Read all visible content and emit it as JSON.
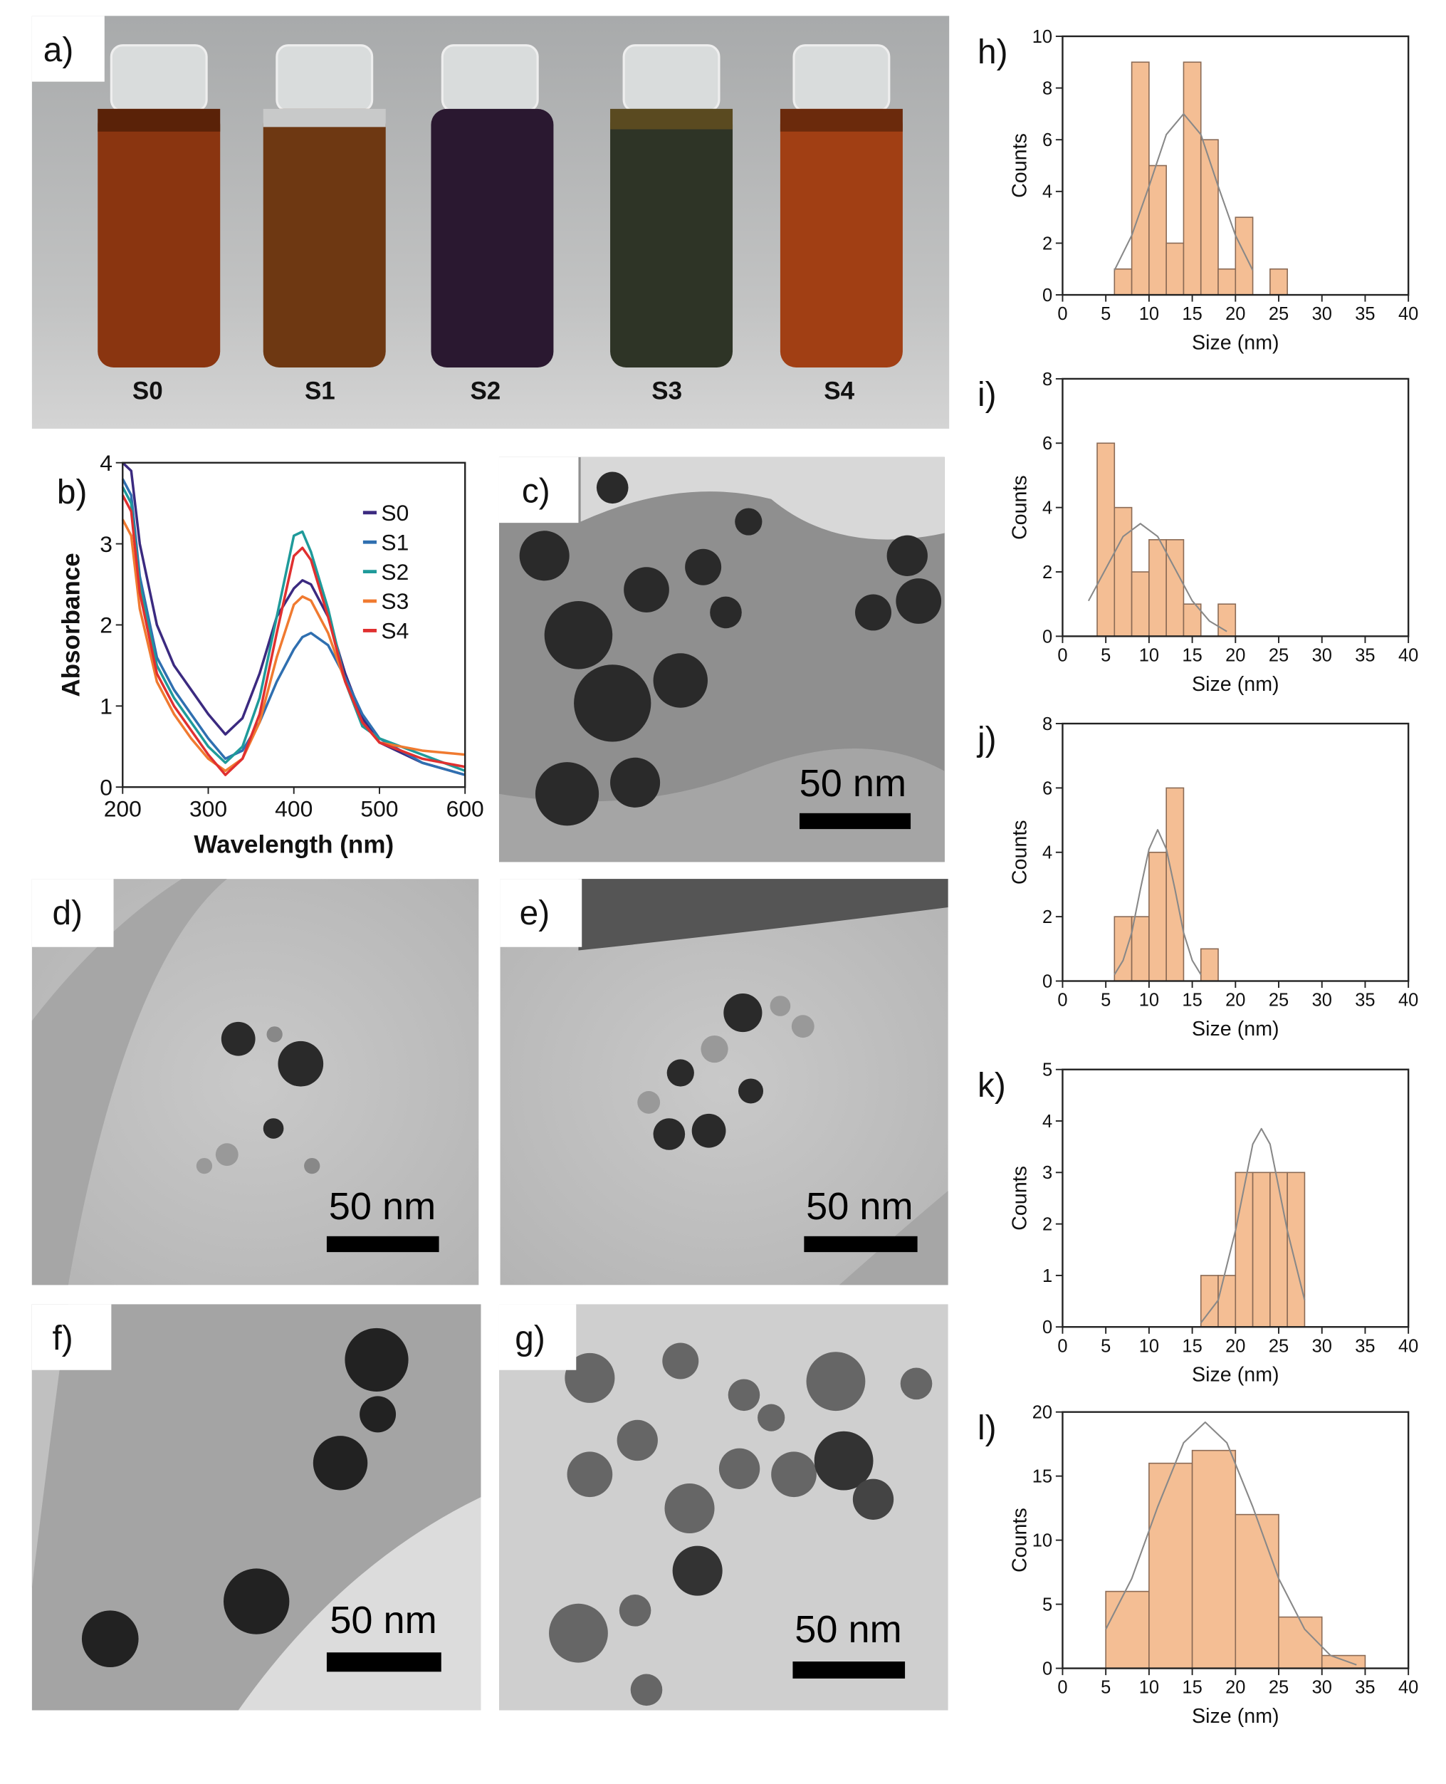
{
  "photo": {
    "label": "a)",
    "vial_labels": [
      "S0",
      "S1",
      "S2",
      "S3",
      "S4"
    ]
  },
  "tem_images": [
    {
      "label": "c)",
      "scale_bar": "50 nm"
    },
    {
      "label": "d)",
      "scale_bar": "50 nm"
    },
    {
      "label": "e)",
      "scale_bar": "50 nm"
    },
    {
      "label": "f)",
      "scale_bar": "50 nm"
    },
    {
      "label": "g)",
      "scale_bar": "50 nm"
    }
  ],
  "chart_data": [
    {
      "type": "line",
      "panel_label": "b)",
      "x_label": "Wavelength (nm)",
      "y_label": "Absorbance",
      "x": [
        200,
        210,
        220,
        240,
        260,
        280,
        300,
        320,
        340,
        360,
        380,
        400,
        410,
        420,
        440,
        460,
        480,
        500,
        550,
        600
      ],
      "series": [
        {
          "name": "S0",
          "color": "#3b2a80",
          "values": [
            4.0,
            3.9,
            3.0,
            2.0,
            1.5,
            1.2,
            0.9,
            0.65,
            0.85,
            1.4,
            2.1,
            2.45,
            2.55,
            2.5,
            2.1,
            1.4,
            0.85,
            0.55,
            0.3,
            0.15
          ]
        },
        {
          "name": "S1",
          "color": "#2f6fb0",
          "values": [
            3.8,
            3.6,
            2.6,
            1.6,
            1.2,
            0.9,
            0.6,
            0.35,
            0.45,
            0.8,
            1.3,
            1.7,
            1.85,
            1.9,
            1.75,
            1.35,
            0.9,
            0.6,
            0.3,
            0.15
          ]
        },
        {
          "name": "S2",
          "color": "#1f9a9a",
          "values": [
            3.7,
            3.5,
            2.5,
            1.5,
            1.1,
            0.8,
            0.5,
            0.3,
            0.5,
            1.1,
            2.1,
            3.1,
            3.15,
            2.9,
            2.2,
            1.3,
            0.75,
            0.6,
            0.4,
            0.2
          ]
        },
        {
          "name": "S3",
          "color": "#f07a30",
          "values": [
            3.3,
            3.1,
            2.2,
            1.3,
            0.9,
            0.6,
            0.35,
            0.2,
            0.35,
            0.8,
            1.6,
            2.25,
            2.35,
            2.3,
            1.9,
            1.3,
            0.8,
            0.55,
            0.45,
            0.4
          ]
        },
        {
          "name": "S4",
          "color": "#e03030",
          "values": [
            3.6,
            3.4,
            2.4,
            1.4,
            1.0,
            0.7,
            0.4,
            0.15,
            0.35,
            0.9,
            1.9,
            2.85,
            2.95,
            2.8,
            2.1,
            1.3,
            0.8,
            0.55,
            0.35,
            0.25
          ]
        }
      ],
      "xlim": [
        200,
        600
      ],
      "xticks": [
        200,
        300,
        400,
        500,
        600
      ],
      "ylim": [
        0,
        4
      ],
      "yticks": [
        0,
        1,
        2,
        3,
        4
      ],
      "legend": "upper right"
    },
    {
      "type": "histogram",
      "panel_label": "h)",
      "x_label": "Size (nm)",
      "y_label": "Counts",
      "bins": [
        6,
        8,
        10,
        12,
        14,
        16,
        18,
        20,
        22,
        24,
        26
      ],
      "values": [
        1,
        9,
        5,
        2,
        9,
        6,
        1,
        3,
        0,
        1
      ],
      "color": "#f4be94",
      "edge_color": "#8a6a55",
      "fit": {
        "color": "#888888",
        "x": [
          6,
          8,
          10,
          12,
          14,
          16,
          18,
          20,
          22
        ],
        "values": [
          0.95,
          2.3,
          4.2,
          6.2,
          7,
          6.2,
          4.2,
          2.3,
          0.95
        ]
      },
      "xlim": [
        0,
        40
      ],
      "xticks": [
        0,
        5,
        10,
        15,
        20,
        25,
        30,
        35,
        40
      ],
      "ylim": [
        0,
        10
      ],
      "yticks": [
        0,
        2,
        4,
        6,
        8,
        10
      ]
    },
    {
      "type": "histogram",
      "panel_label": "i)",
      "x_label": "Size (nm)",
      "y_label": "Counts",
      "bins": [
        4,
        6,
        8,
        10,
        12,
        14,
        16,
        18,
        20
      ],
      "values": [
        6,
        4,
        2,
        3,
        3,
        1,
        0,
        1
      ],
      "color": "#f4be94",
      "edge_color": "#8a6a55",
      "fit": {
        "color": "#888888",
        "x": [
          3,
          5,
          7,
          9,
          11,
          13,
          15,
          17,
          19
        ],
        "values": [
          1.1,
          2.1,
          3.1,
          3.5,
          3.1,
          2.1,
          1.1,
          0.47,
          0.15
        ]
      },
      "xlim": [
        0,
        40
      ],
      "xticks": [
        0,
        5,
        10,
        15,
        20,
        25,
        30,
        35,
        40
      ],
      "ylim": [
        0,
        8
      ],
      "yticks": [
        0,
        2,
        4,
        6,
        8
      ]
    },
    {
      "type": "histogram",
      "panel_label": "j)",
      "x_label": "Size (nm)",
      "y_label": "Counts",
      "bins": [
        6,
        8,
        10,
        12,
        14,
        16,
        18
      ],
      "values": [
        2,
        2,
        4,
        6,
        0,
        1
      ],
      "color": "#f4be94",
      "edge_color": "#8a6a55",
      "fit": {
        "color": "#888888",
        "x": [
          6,
          7,
          8,
          9,
          10,
          11,
          12,
          13,
          14,
          15,
          16
        ],
        "values": [
          0.2,
          0.64,
          1.5,
          2.85,
          4.1,
          4.7,
          4.1,
          2.85,
          1.5,
          0.64,
          0.2
        ]
      },
      "xlim": [
        0,
        40
      ],
      "xticks": [
        0,
        5,
        10,
        15,
        20,
        25,
        30,
        35,
        40
      ],
      "ylim": [
        0,
        8
      ],
      "yticks": [
        0,
        2,
        4,
        6,
        8
      ]
    },
    {
      "type": "histogram",
      "panel_label": "k)",
      "x_label": "Size (nm)",
      "y_label": "Counts",
      "bins": [
        16,
        18,
        20,
        22,
        24,
        26,
        28
      ],
      "values": [
        1,
        1,
        3,
        3,
        3,
        3
      ],
      "color": "#f4be94",
      "edge_color": "#8a6a55",
      "fit": {
        "color": "#888888",
        "x": [
          16,
          18,
          20,
          22,
          23,
          24,
          26,
          28
        ],
        "values": [
          0.08,
          0.52,
          1.87,
          3.55,
          3.85,
          3.55,
          1.87,
          0.52
        ]
      },
      "xlim": [
        0,
        40
      ],
      "xticks": [
        0,
        5,
        10,
        15,
        20,
        25,
        30,
        35,
        40
      ],
      "ylim": [
        0,
        5
      ],
      "yticks": [
        0,
        1,
        2,
        3,
        4,
        5
      ]
    },
    {
      "type": "histogram",
      "panel_label": "l)",
      "x_label": "Size (nm)",
      "y_label": "Counts",
      "bins": [
        5,
        10,
        15,
        20,
        25,
        30,
        35
      ],
      "values": [
        6,
        16,
        17,
        12,
        4,
        1
      ],
      "color": "#f4be94",
      "edge_color": "#8a6a55",
      "fit": {
        "color": "#888888",
        "x": [
          5,
          8,
          11,
          14,
          16.5,
          19,
          22,
          25,
          28,
          31,
          34
        ],
        "values": [
          3.05,
          7.0,
          12.6,
          17.6,
          19.2,
          17.6,
          12.6,
          7.0,
          3.05,
          1.0,
          0.27
        ]
      },
      "xlim": [
        0,
        40
      ],
      "xticks": [
        0,
        5,
        10,
        15,
        20,
        25,
        30,
        35,
        40
      ],
      "ylim": [
        0,
        20
      ],
      "yticks": [
        0,
        5,
        10,
        15,
        20
      ]
    }
  ]
}
